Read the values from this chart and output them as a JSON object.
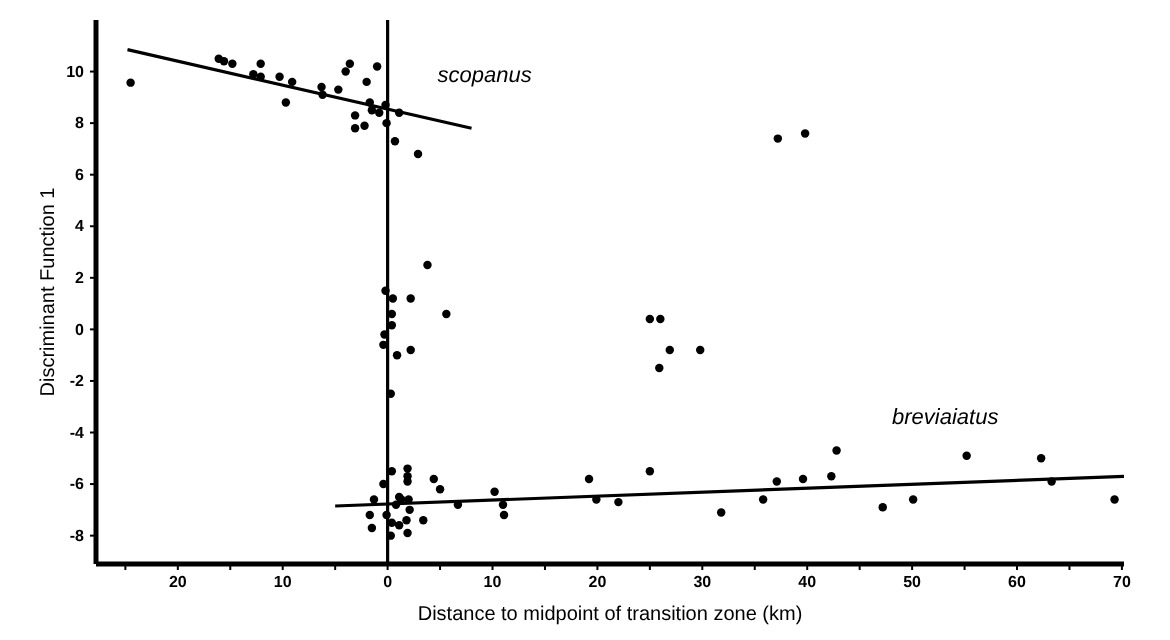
{
  "chart_data": {
    "type": "scatter",
    "xlabel": "Distance to midpoint of transition zone (km)",
    "ylabel": "Discriminant Function 1",
    "xlim": [
      -27.8,
      70.2
    ],
    "ylim": [
      -9.1,
      12
    ],
    "xticks": [
      {
        "value": -25,
        "label": null
      },
      {
        "value": -20,
        "label": "20"
      },
      {
        "value": -15,
        "label": null
      },
      {
        "value": -10,
        "label": "10"
      },
      {
        "value": -5,
        "label": null
      },
      0,
      {
        "value": 5,
        "label": null
      },
      10,
      {
        "value": 15,
        "label": null
      },
      20,
      {
        "value": 25,
        "label": null
      },
      30,
      {
        "value": 35,
        "label": null
      },
      40,
      {
        "value": 45,
        "label": null
      },
      50,
      {
        "value": 55,
        "label": null
      },
      60,
      {
        "value": 65,
        "label": null
      },
      70
    ],
    "yticks": [
      -8,
      -6,
      -4,
      -2,
      0,
      2,
      4,
      6,
      8,
      10
    ],
    "grid": false,
    "ref_lines": [
      {
        "axis": "x",
        "value": 0,
        "color": "#000000"
      }
    ],
    "series": [
      {
        "marker": "circle",
        "color": "#000000",
        "x": [
          -24.5,
          -16.1,
          -15.6,
          -14.8,
          -12.8,
          -12.1,
          -12.1,
          -10.3,
          -9.7,
          -9.1,
          -6.3,
          -6.2,
          -4.7,
          -4.0,
          -3.6,
          -3.1,
          -3.1,
          -2.2,
          -2.0,
          -1.7,
          -1.5,
          -1.0,
          -0.8,
          -0.2,
          -0.1,
          0.7,
          1.1,
          2.9,
          3.8,
          -0.2,
          0.5,
          2.2,
          0.4,
          5.6,
          37.2,
          39.8,
          0.4,
          -0.3,
          -0.4,
          0.9,
          2.2,
          0.3,
          0.4,
          1.9,
          1.9,
          1.9,
          -0.4,
          4.4,
          5.0,
          -1.3,
          1.1,
          1.3,
          2.0,
          0.8,
          2.1,
          6.7,
          10.2,
          11.0,
          11.1,
          -1.7,
          -1.5,
          -0.1,
          0.4,
          1.1,
          1.8,
          3.4,
          0.3,
          1.9,
          19.2,
          19.9,
          25.0,
          26.0,
          26.9,
          29.8,
          25.9,
          22.0,
          25.0,
          31.8,
          35.8,
          37.1,
          39.6,
          42.3,
          42.8,
          47.2,
          50.1,
          55.2,
          62.3,
          63.3,
          69.3
        ],
        "values": [
          9.57,
          10.5,
          10.4,
          10.3,
          9.9,
          10.3,
          9.8,
          9.8,
          8.8,
          9.6,
          9.4,
          9.1,
          9.3,
          10.0,
          10.3,
          8.3,
          7.8,
          7.9,
          9.6,
          8.8,
          8.5,
          10.2,
          8.4,
          8.7,
          8.0,
          7.3,
          8.4,
          6.8,
          2.5,
          1.5,
          1.2,
          1.2,
          0.6,
          0.6,
          7.4,
          7.6,
          0.16,
          -0.2,
          -0.6,
          -1.0,
          -0.8,
          -2.5,
          -5.5,
          -5.4,
          -5.7,
          -5.9,
          -6.0,
          -5.8,
          -6.2,
          -6.6,
          -6.5,
          -6.6,
          -6.6,
          -6.8,
          -7.0,
          -6.8,
          -6.3,
          -6.8,
          -7.2,
          -7.2,
          -7.7,
          -7.2,
          -7.5,
          -7.6,
          -7.4,
          -7.4,
          -8.0,
          -7.9,
          -5.8,
          -6.6,
          0.4,
          0.4,
          -0.8,
          -0.8,
          -1.5,
          -6.7,
          -5.5,
          -7.1,
          -6.6,
          -5.9,
          -5.8,
          -5.7,
          -4.7,
          -6.9,
          -6.6,
          -4.9,
          -5.0,
          -5.9,
          -6.6
        ]
      },
      {
        "type": "line",
        "name": "scopanus",
        "marker": "none",
        "color": "#000000",
        "x": [
          -24.8,
          8.0
        ],
        "values": [
          10.85,
          7.8
        ]
      },
      {
        "type": "line",
        "name": "breviaiatus",
        "marker": "none",
        "color": "#000000",
        "x": [
          -5.0,
          70.2
        ],
        "values": [
          -6.85,
          -5.7
        ]
      }
    ]
  }
}
